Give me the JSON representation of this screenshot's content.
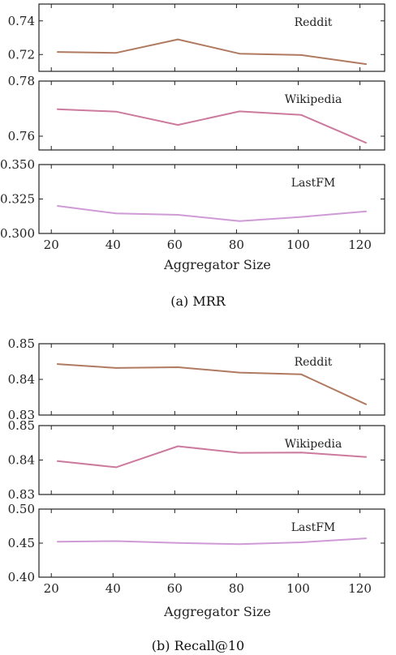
{
  "figures": [
    {
      "caption": "(a)  MRR",
      "xlabel": "Aggregator Size"
    },
    {
      "caption": "(b)  Recall@10",
      "xlabel": "Aggregator Size"
    }
  ],
  "chart_data": [
    {
      "type": "line",
      "title": "Reddit",
      "metric": "MRR",
      "x": [
        22,
        41,
        61,
        81,
        101,
        122
      ],
      "series": [
        {
          "values": [
            0.7215,
            0.721,
            0.729,
            0.7205,
            0.7197,
            0.7143
          ]
        }
      ],
      "xlim": [
        16,
        128
      ],
      "ylim": [
        0.71,
        0.75
      ],
      "xticks": [
        "20",
        "40",
        "60",
        "80",
        "100",
        "120"
      ],
      "xtick_values": [
        20,
        40,
        60,
        80,
        100,
        120
      ],
      "yticks": [
        "0.72",
        "0.74"
      ],
      "ytick_values": [
        0.72,
        0.74
      ],
      "color": "#b07a60",
      "show_xlabels": false
    },
    {
      "type": "line",
      "title": "Wikipedia",
      "metric": "MRR",
      "x": [
        22,
        41,
        61,
        81,
        101,
        122
      ],
      "series": [
        {
          "values": [
            0.7698,
            0.7689,
            0.7641,
            0.769,
            0.7677,
            0.7576
          ]
        }
      ],
      "xlim": [
        16,
        128
      ],
      "ylim": [
        0.755,
        0.78
      ],
      "xticks": [
        "20",
        "40",
        "60",
        "80",
        "100",
        "120"
      ],
      "xtick_values": [
        20,
        40,
        60,
        80,
        100,
        120
      ],
      "yticks": [
        "0.76",
        "0.78"
      ],
      "ytick_values": [
        0.76,
        0.78
      ],
      "color": "#cc7a9e",
      "show_xlabels": false
    },
    {
      "type": "line",
      "title": "LastFM",
      "metric": "MRR",
      "x": [
        22,
        41,
        61,
        81,
        101,
        122
      ],
      "series": [
        {
          "values": [
            0.32,
            0.3145,
            0.3135,
            0.309,
            0.312,
            0.316
          ]
        }
      ],
      "xlim": [
        16,
        128
      ],
      "ylim": [
        0.3,
        0.35
      ],
      "xticks": [
        "20",
        "40",
        "60",
        "80",
        "100",
        "120"
      ],
      "xtick_values": [
        20,
        40,
        60,
        80,
        100,
        120
      ],
      "yticks": [
        "0.300",
        "0.325",
        "0.350"
      ],
      "ytick_values": [
        0.3,
        0.325,
        0.35
      ],
      "color": "#cf9ad6",
      "show_xlabels": true
    },
    {
      "type": "line",
      "title": "Reddit",
      "metric": "Recall@10",
      "x": [
        22,
        41,
        61,
        81,
        101,
        122
      ],
      "series": [
        {
          "values": [
            0.8443,
            0.8432,
            0.8434,
            0.8419,
            0.8414,
            0.833
          ]
        }
      ],
      "xlim": [
        16,
        128
      ],
      "ylim": [
        0.83,
        0.85
      ],
      "xticks": [
        "20",
        "40",
        "60",
        "80",
        "100",
        "120"
      ],
      "xtick_values": [
        20,
        40,
        60,
        80,
        100,
        120
      ],
      "yticks": [
        "0.83",
        "0.84",
        "0.85"
      ],
      "ytick_values": [
        0.83,
        0.84,
        0.85
      ],
      "color": "#b07a60",
      "show_xlabels": false
    },
    {
      "type": "line",
      "title": "Wikipedia",
      "metric": "Recall@10",
      "x": [
        22,
        41,
        61,
        81,
        101,
        122
      ],
      "series": [
        {
          "values": [
            0.8397,
            0.8379,
            0.844,
            0.8421,
            0.8422,
            0.8409
          ]
        }
      ],
      "xlim": [
        16,
        128
      ],
      "ylim": [
        0.83,
        0.85
      ],
      "xticks": [
        "20",
        "40",
        "60",
        "80",
        "100",
        "120"
      ],
      "xtick_values": [
        20,
        40,
        60,
        80,
        100,
        120
      ],
      "yticks": [
        "0.83",
        "0.84",
        "0.85"
      ],
      "ytick_values": [
        0.83,
        0.84,
        0.85
      ],
      "color": "#cc7a9e",
      "show_xlabels": false
    },
    {
      "type": "line",
      "title": "LastFM",
      "metric": "Recall@10",
      "x": [
        22,
        41,
        61,
        81,
        101,
        122
      ],
      "series": [
        {
          "values": [
            0.452,
            0.453,
            0.4502,
            0.4485,
            0.4512,
            0.457
          ]
        }
      ],
      "xlim": [
        16,
        128
      ],
      "ylim": [
        0.4,
        0.5
      ],
      "xticks": [
        "20",
        "40",
        "60",
        "80",
        "100",
        "120"
      ],
      "xtick_values": [
        20,
        40,
        60,
        80,
        100,
        120
      ],
      "yticks": [
        "0.40",
        "0.45",
        "0.50"
      ],
      "ytick_values": [
        0.4,
        0.45,
        0.5
      ],
      "color": "#cf9ad6",
      "show_xlabels": true
    }
  ]
}
